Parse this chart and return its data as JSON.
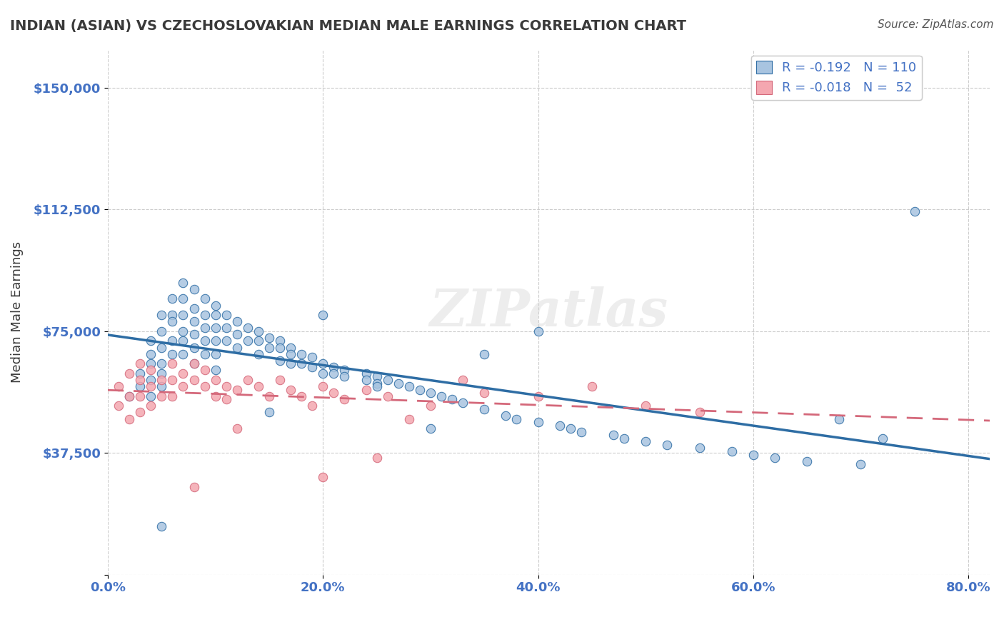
{
  "title": "INDIAN (ASIAN) VS CZECHOSLOVAKIAN MEDIAN MALE EARNINGS CORRELATION CHART",
  "source": "Source: ZipAtlas.com",
  "ylabel": "Median Male Earnings",
  "xlabel_ticks": [
    "0.0%",
    "20.0%",
    "40.0%",
    "60.0%",
    "80.0%"
  ],
  "xlabel_vals": [
    0.0,
    0.2,
    0.4,
    0.6,
    0.8
  ],
  "ytick_vals": [
    0,
    37500,
    75000,
    112500,
    150000
  ],
  "ytick_labels": [
    "",
    "$37,500",
    "$75,000",
    "$112,500",
    "$150,000"
  ],
  "xlim": [
    0.0,
    0.82
  ],
  "ylim": [
    0,
    162000
  ],
  "legend_r1": "R = -0.192",
  "legend_n1": "N = 110",
  "legend_r2": "R = -0.018",
  "legend_n2": "N =  52",
  "watermark": "ZIPatlas",
  "blue_color": "#a8c4e0",
  "blue_line_color": "#2e6da4",
  "pink_color": "#f4a7b0",
  "pink_line_color": "#d4687a",
  "title_color": "#3a3a3a",
  "tick_color": "#4472c4",
  "ylabel_color": "#3a3a3a",
  "source_color": "#555555",
  "r_color": "#4472c4",
  "background_color": "#ffffff",
  "grid_color": "#cccccc",
  "indian_x": [
    0.02,
    0.03,
    0.03,
    0.04,
    0.04,
    0.04,
    0.04,
    0.04,
    0.05,
    0.05,
    0.05,
    0.05,
    0.05,
    0.05,
    0.06,
    0.06,
    0.06,
    0.06,
    0.06,
    0.07,
    0.07,
    0.07,
    0.07,
    0.07,
    0.07,
    0.08,
    0.08,
    0.08,
    0.08,
    0.08,
    0.08,
    0.09,
    0.09,
    0.09,
    0.09,
    0.09,
    0.1,
    0.1,
    0.1,
    0.1,
    0.1,
    0.11,
    0.11,
    0.11,
    0.12,
    0.12,
    0.12,
    0.13,
    0.13,
    0.14,
    0.14,
    0.14,
    0.15,
    0.15,
    0.16,
    0.16,
    0.16,
    0.17,
    0.17,
    0.17,
    0.18,
    0.18,
    0.19,
    0.19,
    0.2,
    0.2,
    0.21,
    0.21,
    0.22,
    0.22,
    0.24,
    0.24,
    0.25,
    0.25,
    0.26,
    0.27,
    0.28,
    0.29,
    0.3,
    0.31,
    0.32,
    0.33,
    0.35,
    0.37,
    0.38,
    0.4,
    0.42,
    0.43,
    0.44,
    0.47,
    0.48,
    0.5,
    0.52,
    0.55,
    0.58,
    0.6,
    0.62,
    0.65,
    0.7,
    0.4,
    0.35,
    0.3,
    0.25,
    0.2,
    0.15,
    0.1,
    0.05,
    0.75,
    0.68,
    0.72
  ],
  "indian_y": [
    55000,
    62000,
    58000,
    72000,
    68000,
    65000,
    60000,
    55000,
    80000,
    75000,
    70000,
    65000,
    62000,
    58000,
    85000,
    80000,
    78000,
    72000,
    68000,
    90000,
    85000,
    80000,
    75000,
    72000,
    68000,
    88000,
    82000,
    78000,
    74000,
    70000,
    65000,
    85000,
    80000,
    76000,
    72000,
    68000,
    83000,
    80000,
    76000,
    72000,
    68000,
    80000,
    76000,
    72000,
    78000,
    74000,
    70000,
    76000,
    72000,
    75000,
    72000,
    68000,
    73000,
    70000,
    72000,
    70000,
    66000,
    70000,
    68000,
    65000,
    68000,
    65000,
    67000,
    64000,
    65000,
    62000,
    64000,
    62000,
    63000,
    61000,
    62000,
    60000,
    61000,
    59000,
    60000,
    59000,
    58000,
    57000,
    56000,
    55000,
    54000,
    53000,
    51000,
    49000,
    48000,
    47000,
    46000,
    45000,
    44000,
    43000,
    42000,
    41000,
    40000,
    39000,
    38000,
    37000,
    36000,
    35000,
    34000,
    75000,
    68000,
    45000,
    58000,
    80000,
    50000,
    63000,
    15000,
    112000,
    48000,
    42000
  ],
  "czech_x": [
    0.01,
    0.01,
    0.02,
    0.02,
    0.02,
    0.03,
    0.03,
    0.03,
    0.03,
    0.04,
    0.04,
    0.04,
    0.05,
    0.05,
    0.06,
    0.06,
    0.06,
    0.07,
    0.07,
    0.08,
    0.08,
    0.09,
    0.09,
    0.1,
    0.1,
    0.11,
    0.11,
    0.12,
    0.13,
    0.14,
    0.15,
    0.16,
    0.17,
    0.18,
    0.19,
    0.2,
    0.21,
    0.22,
    0.24,
    0.26,
    0.3,
    0.35,
    0.4,
    0.45,
    0.5,
    0.55,
    0.2,
    0.25,
    0.08,
    0.12,
    0.33,
    0.28
  ],
  "czech_y": [
    58000,
    52000,
    62000,
    55000,
    48000,
    65000,
    60000,
    55000,
    50000,
    63000,
    58000,
    52000,
    60000,
    55000,
    65000,
    60000,
    55000,
    62000,
    58000,
    65000,
    60000,
    63000,
    58000,
    60000,
    55000,
    58000,
    54000,
    57000,
    60000,
    58000,
    55000,
    60000,
    57000,
    55000,
    52000,
    58000,
    56000,
    54000,
    57000,
    55000,
    52000,
    56000,
    55000,
    58000,
    52000,
    50000,
    30000,
    36000,
    27000,
    45000,
    60000,
    48000
  ]
}
